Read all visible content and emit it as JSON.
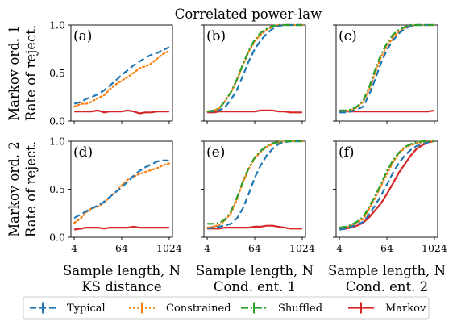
{
  "chart_data": {
    "type": "line",
    "suptitle": "Correlated power-law",
    "colors": {
      "Typical": "#1f77b4",
      "Constrained": "#ff7f0e",
      "Shuffled": "#2ca02c",
      "Markov": "#d62728"
    },
    "styles": {
      "Typical": "dashed",
      "Constrained": "dotted",
      "Shuffled": "dashdot",
      "Markov": "solid"
    },
    "legend": {
      "placement": "bottom",
      "entries": [
        "Typical",
        "Constrained",
        "Shuffled",
        "Markov"
      ]
    },
    "x_scale": "log2",
    "xlim": [
      3.3,
      1240
    ],
    "ylim": [
      0,
      1
    ],
    "x_ticks": [
      4,
      64,
      1024
    ],
    "x_tick_labels": [
      "4",
      "64",
      "1024"
    ],
    "y_ticks": [
      0,
      0.5,
      1
    ],
    "y_tick_labels": [
      "0.0",
      "0.5",
      "1.0"
    ],
    "row_labels": [
      [
        "Markov ord. 1",
        "Rate of reject."
      ],
      [
        "Markov ord. 2",
        "Rate of reject."
      ]
    ],
    "xlabel": "Sample length, N",
    "column_titles": [
      "KS distance",
      "Cond. ent. 1",
      "Cond. ent. 2"
    ],
    "x": [
      4,
      6,
      8,
      11,
      16,
      23,
      32,
      45,
      64,
      91,
      128,
      181,
      256,
      362,
      512,
      724,
      1024
    ],
    "panels": [
      {
        "label": "(a)",
        "row": 0,
        "col": 0,
        "series": [
          {
            "name": "Typical",
            "values": [
              0.18,
              0.2,
              0.23,
              0.25,
              0.28,
              0.32,
              0.37,
              0.42,
              0.48,
              0.53,
              0.58,
              0.62,
              0.66,
              0.69,
              0.71,
              0.74,
              0.77
            ]
          },
          {
            "name": "Constrained",
            "values": [
              0.15,
              0.18,
              0.18,
              0.2,
              0.24,
              0.27,
              0.33,
              0.38,
              0.42,
              0.46,
              0.5,
              0.55,
              0.57,
              0.6,
              0.65,
              0.7,
              0.73
            ]
          },
          {
            "name": "Markov",
            "values": [
              0.1,
              0.1,
              0.1,
              0.1,
              0.11,
              0.09,
              0.1,
              0.1,
              0.1,
              0.11,
              0.1,
              0.08,
              0.09,
              0.09,
              0.1,
              0.1,
              0.1
            ]
          }
        ]
      },
      {
        "label": "(b)",
        "row": 0,
        "col": 1,
        "series": [
          {
            "name": "Typical",
            "values": [
              0.1,
              0.1,
              0.11,
              0.14,
              0.22,
              0.33,
              0.47,
              0.62,
              0.75,
              0.84,
              0.91,
              0.96,
              0.99,
              1.0,
              1.0,
              1.0,
              1.0
            ]
          },
          {
            "name": "Constrained",
            "values": [
              0.1,
              0.11,
              0.13,
              0.2,
              0.3,
              0.43,
              0.58,
              0.72,
              0.83,
              0.9,
              0.95,
              0.98,
              1.0,
              1.0,
              1.0,
              1.0,
              1.0
            ]
          },
          {
            "name": "Shuffled",
            "values": [
              0.1,
              0.11,
              0.13,
              0.2,
              0.3,
              0.44,
              0.59,
              0.73,
              0.85,
              0.92,
              0.96,
              0.99,
              1.0,
              1.0,
              1.0,
              1.0,
              1.0
            ]
          },
          {
            "name": "Markov",
            "values": [
              0.09,
              0.09,
              0.1,
              0.1,
              0.1,
              0.1,
              0.1,
              0.1,
              0.1,
              0.11,
              0.11,
              0.11,
              0.1,
              0.1,
              0.09,
              0.09,
              0.09
            ]
          }
        ]
      },
      {
        "label": "(c)",
        "row": 0,
        "col": 2,
        "series": [
          {
            "name": "Typical",
            "values": [
              0.09,
              0.09,
              0.1,
              0.12,
              0.15,
              0.28,
              0.43,
              0.6,
              0.74,
              0.84,
              0.91,
              0.96,
              0.99,
              1.0,
              1.0,
              1.0,
              1.0
            ]
          },
          {
            "name": "Constrained",
            "values": [
              0.1,
              0.1,
              0.11,
              0.14,
              0.2,
              0.33,
              0.5,
              0.66,
              0.78,
              0.87,
              0.93,
              0.97,
              0.99,
              1.0,
              1.0,
              1.0,
              1.0
            ]
          },
          {
            "name": "Shuffled",
            "values": [
              0.11,
              0.11,
              0.12,
              0.15,
              0.21,
              0.36,
              0.53,
              0.69,
              0.81,
              0.9,
              0.95,
              0.98,
              1.0,
              1.0,
              1.0,
              1.0,
              1.0
            ]
          },
          {
            "name": "Markov",
            "values": [
              0.1,
              0.1,
              0.1,
              0.1,
              0.1,
              0.1,
              0.1,
              0.1,
              0.1,
              0.1,
              0.1,
              0.1,
              0.1,
              0.1,
              0.1,
              0.1,
              0.11
            ]
          }
        ]
      },
      {
        "label": "(d)",
        "row": 1,
        "col": 0,
        "series": [
          {
            "name": "Typical",
            "values": [
              0.2,
              0.24,
              0.27,
              0.3,
              0.33,
              0.37,
              0.42,
              0.47,
              0.52,
              0.58,
              0.64,
              0.69,
              0.73,
              0.76,
              0.79,
              0.8,
              0.8
            ]
          },
          {
            "name": "Constrained",
            "values": [
              0.15,
              0.2,
              0.26,
              0.3,
              0.32,
              0.36,
              0.42,
              0.47,
              0.54,
              0.6,
              0.63,
              0.66,
              0.68,
              0.7,
              0.72,
              0.75,
              0.77
            ]
          },
          {
            "name": "Markov",
            "values": [
              0.08,
              0.09,
              0.1,
              0.1,
              0.1,
              0.09,
              0.1,
              0.1,
              0.1,
              0.1,
              0.11,
              0.1,
              0.1,
              0.1,
              0.1,
              0.1,
              0.1
            ]
          }
        ]
      },
      {
        "label": "(e)",
        "row": 1,
        "col": 1,
        "series": [
          {
            "name": "Typical",
            "values": [
              0.09,
              0.1,
              0.11,
              0.12,
              0.14,
              0.2,
              0.3,
              0.45,
              0.62,
              0.75,
              0.85,
              0.92,
              0.97,
              0.99,
              1.0,
              1.0,
              1.0
            ]
          },
          {
            "name": "Constrained",
            "values": [
              0.1,
              0.11,
              0.13,
              0.17,
              0.25,
              0.4,
              0.57,
              0.71,
              0.82,
              0.89,
              0.94,
              0.97,
              0.99,
              1.0,
              1.0,
              1.0,
              1.0
            ]
          },
          {
            "name": "Shuffled",
            "values": [
              0.14,
              0.14,
              0.15,
              0.18,
              0.27,
              0.42,
              0.58,
              0.72,
              0.83,
              0.9,
              0.95,
              0.98,
              0.99,
              1.0,
              1.0,
              1.0,
              1.0
            ]
          },
          {
            "name": "Markov",
            "values": [
              0.09,
              0.09,
              0.09,
              0.1,
              0.1,
              0.1,
              0.1,
              0.1,
              0.11,
              0.11,
              0.12,
              0.12,
              0.11,
              0.1,
              0.09,
              0.09,
              0.09
            ]
          }
        ]
      },
      {
        "label": "(f)",
        "row": 1,
        "col": 2,
        "series": [
          {
            "name": "Typical",
            "values": [
              0.08,
              0.09,
              0.11,
              0.13,
              0.16,
              0.24,
              0.33,
              0.43,
              0.55,
              0.67,
              0.77,
              0.85,
              0.91,
              0.95,
              0.97,
              0.99,
              1.0
            ]
          },
          {
            "name": "Constrained",
            "values": [
              0.09,
              0.1,
              0.12,
              0.15,
              0.19,
              0.3,
              0.41,
              0.53,
              0.66,
              0.78,
              0.87,
              0.93,
              0.96,
              0.98,
              0.99,
              1.0,
              1.0
            ]
          },
          {
            "name": "Shuffled",
            "values": [
              0.1,
              0.11,
              0.13,
              0.16,
              0.21,
              0.32,
              0.43,
              0.55,
              0.69,
              0.8,
              0.88,
              0.94,
              0.97,
              0.99,
              1.0,
              1.0,
              1.0
            ]
          },
          {
            "name": "Markov",
            "values": [
              0.08,
              0.09,
              0.1,
              0.12,
              0.15,
              0.21,
              0.28,
              0.35,
              0.45,
              0.56,
              0.67,
              0.76,
              0.85,
              0.92,
              0.96,
              0.99,
              1.0
            ]
          }
        ]
      }
    ]
  }
}
